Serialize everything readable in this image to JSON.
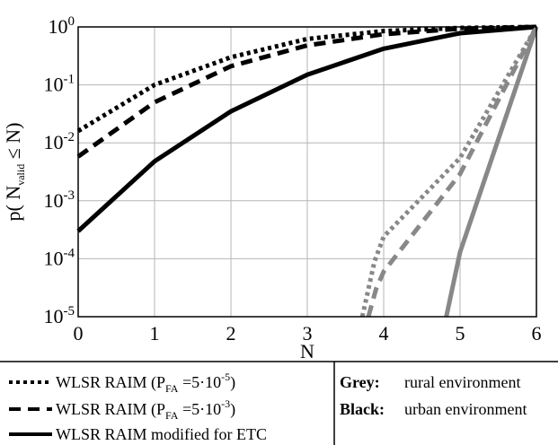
{
  "chart_data": {
    "type": "line",
    "xlabel": "N",
    "ylabel_main": "p( N",
    "ylabel_sub": "valid",
    "ylabel_rest": " ≤ N)",
    "xlim": [
      0,
      6
    ],
    "ylim": [
      1e-05,
      1
    ],
    "yscale": "log",
    "grid": true,
    "x_ticks": [
      "0",
      "1",
      "2",
      "3",
      "4",
      "5",
      "6"
    ],
    "y_ticks": [
      {
        "base": "10",
        "exp": "0",
        "value": 1
      },
      {
        "base": "10",
        "exp": "-1",
        "value": 0.1
      },
      {
        "base": "10",
        "exp": "-2",
        "value": 0.01
      },
      {
        "base": "10",
        "exp": "-3",
        "value": 0.001
      },
      {
        "base": "10",
        "exp": "-4",
        "value": 0.0001
      },
      {
        "base": "10",
        "exp": "-5",
        "value": 1e-05
      }
    ],
    "series": [
      {
        "color": "#000000",
        "style": "dotted",
        "points": [
          [
            0,
            0.016
          ],
          [
            1,
            0.1
          ],
          [
            2,
            0.3
          ],
          [
            3,
            0.62
          ],
          [
            4,
            0.85
          ],
          [
            5,
            0.96
          ],
          [
            6,
            1.0
          ]
        ]
      },
      {
        "color": "#000000",
        "style": "dashed",
        "points": [
          [
            0,
            0.0058
          ],
          [
            1,
            0.05
          ],
          [
            2,
            0.21
          ],
          [
            3,
            0.48
          ],
          [
            4,
            0.75
          ],
          [
            5,
            0.93
          ],
          [
            6,
            1.0
          ]
        ]
      },
      {
        "color": "#000000",
        "style": "solid",
        "points": [
          [
            0,
            0.0003
          ],
          [
            1,
            0.0048
          ],
          [
            2,
            0.035
          ],
          [
            3,
            0.15
          ],
          [
            4,
            0.42
          ],
          [
            5,
            0.78
          ],
          [
            6,
            1.0
          ]
        ]
      },
      {
        "color": "#888888",
        "style": "dotted",
        "points": [
          [
            3.72,
            1e-05
          ],
          [
            3.88,
            9e-05
          ],
          [
            4,
            0.00024
          ],
          [
            5,
            0.0055
          ],
          [
            6,
            1.0
          ]
        ]
      },
      {
        "color": "#888888",
        "style": "dashed",
        "points": [
          [
            3.8,
            1e-05
          ],
          [
            3.9,
            3e-05
          ],
          [
            4,
            6e-05
          ],
          [
            5,
            0.0029
          ],
          [
            6,
            1.0
          ]
        ]
      },
      {
        "color": "#888888",
        "style": "solid",
        "points": [
          [
            4.82,
            1e-05
          ],
          [
            5,
            0.00013
          ],
          [
            6,
            1.0
          ]
        ]
      }
    ]
  },
  "legend": {
    "left": [
      {
        "style": "dotted",
        "prefix": "WLSR RAIM (P",
        "sub": "FA",
        "mid": " =5·10",
        "sup": "-5",
        "suffix": ")"
      },
      {
        "style": "dashed",
        "prefix": "WLSR RAIM (P",
        "sub": "FA",
        "mid": " =5·10",
        "sup": "-3",
        "suffix": ")"
      },
      {
        "style": "solid",
        "prefix": "WLSR RAIM modified for ETC",
        "sub": "",
        "mid": "",
        "sup": "",
        "suffix": ""
      }
    ],
    "right": [
      {
        "key": "Grey:",
        "key_color": "#888888",
        "text": "rural environment"
      },
      {
        "key": "Black:",
        "key_color": "#000000",
        "text": "urban environment"
      }
    ]
  }
}
